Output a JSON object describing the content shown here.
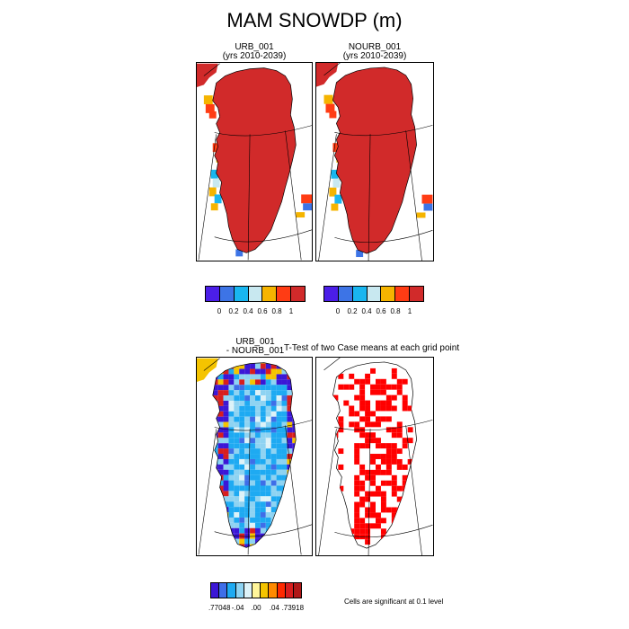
{
  "title": "MAM SNOWDP (m)",
  "panels": {
    "urb": {
      "title_line1": "URB_001",
      "title_line2": "(yrs 2010-2039)"
    },
    "nourb": {
      "title_line1": "NOURB_001",
      "title_line2": "(yrs 2010-2039)"
    },
    "diff": {
      "title_line1": "URB_001",
      "title_line2": "- NOURB_001"
    },
    "ttest": {
      "title": "T-Test of two Case means at each grid point"
    }
  },
  "colorbar_top": {
    "colors": [
      "#4b1ee8",
      "#3d74e6",
      "#19b6f0",
      "#c8e8f0",
      "#f5b400",
      "#ff3c14",
      "#d12a2a"
    ],
    "labels": [
      "0",
      "0.2",
      "0.4",
      "0.6",
      "0.8",
      "1"
    ]
  },
  "colorbar_bottom": {
    "colors": [
      "#3b17d6",
      "#3e6ee8",
      "#1eaaf2",
      "#8ed3f2",
      "#ddf2f8",
      "#fff59a",
      "#f5c400",
      "#ff8a00",
      "#ff2a00",
      "#d81e1e",
      "#b01818"
    ],
    "labels": [
      ".77048",
      "-.04",
      ".00",
      ".04",
      ".73918"
    ]
  },
  "note": "Cells are significant at 0.1 level",
  "colors": {
    "snow_full": "#d12a2a",
    "significant": "#ff0000",
    "coast": "#000000"
  }
}
